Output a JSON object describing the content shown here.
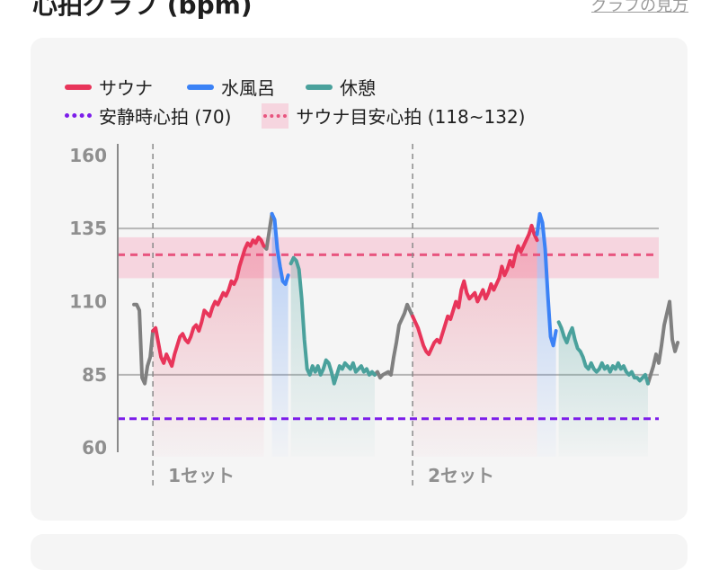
{
  "header": {
    "title": "心拍グラフ (bpm)",
    "help_link": "グラフの見方"
  },
  "legend": {
    "sauna": "サウナ",
    "cold_bath": "水風呂",
    "rest": "休憩",
    "resting_hr": "安静時心拍 (70)",
    "sauna_target": "サウナ目安心拍 (118~132)"
  },
  "colors": {
    "sauna": "#e8355a",
    "cold_bath": "#3b82f6",
    "rest": "#4aa19c",
    "transition": "#808080",
    "resting_hr": "#7c1dea",
    "sauna_target": "#e8557f",
    "sauna_target_band": "#f6d5df"
  },
  "chart_data": {
    "type": "line",
    "ylim": [
      57,
      163
    ],
    "yticks": [
      "160",
      "135",
      "110",
      "85",
      "60"
    ],
    "xlim": [
      0,
      100
    ],
    "grid_lines": [
      135,
      85
    ],
    "resting_hr": 70,
    "sauna_target_range": [
      118,
      132
    ],
    "sauna_target_line": 126,
    "set_boundaries": [
      {
        "x": 6.5,
        "label": "1セット"
      },
      {
        "x": 54.5,
        "label": "2セット"
      }
    ],
    "series": [
      {
        "name": "サウナ",
        "phase": "sauna",
        "fill": true,
        "points": [
          [
            6.5,
            100
          ],
          [
            7,
            101
          ],
          [
            7.5,
            96
          ],
          [
            8,
            91
          ],
          [
            8.5,
            89
          ],
          [
            9,
            92
          ],
          [
            9.5,
            90
          ],
          [
            10,
            88
          ],
          [
            10.5,
            92
          ],
          [
            11,
            95
          ],
          [
            11.5,
            98
          ],
          [
            12,
            99
          ],
          [
            12.5,
            97
          ],
          [
            13,
            96
          ],
          [
            13.5,
            98
          ],
          [
            14,
            101
          ],
          [
            14.5,
            102
          ],
          [
            15,
            100
          ],
          [
            15.5,
            103
          ],
          [
            16,
            107
          ],
          [
            16.5,
            106
          ],
          [
            17,
            105
          ],
          [
            17.5,
            108
          ],
          [
            18,
            110
          ],
          [
            18.5,
            109
          ],
          [
            19,
            111
          ],
          [
            19.5,
            113
          ],
          [
            20,
            112
          ],
          [
            20.5,
            114
          ],
          [
            21,
            117
          ],
          [
            21.5,
            116
          ],
          [
            22,
            118
          ],
          [
            22.5,
            122
          ],
          [
            23,
            125
          ],
          [
            23.5,
            128
          ],
          [
            24,
            130
          ],
          [
            24.5,
            129
          ],
          [
            25,
            131
          ],
          [
            25.5,
            130
          ],
          [
            26,
            132
          ],
          [
            26.5,
            131
          ],
          [
            27,
            129
          ]
        ]
      },
      {
        "name": "水風呂",
        "phase": "cold_bath",
        "fill": true,
        "points": [
          [
            28.5,
            140
          ],
          [
            29,
            138
          ],
          [
            29.5,
            128
          ],
          [
            30,
            122
          ],
          [
            30.5,
            117
          ],
          [
            31,
            116
          ],
          [
            31.5,
            119
          ]
        ]
      },
      {
        "name": "休憩",
        "phase": "rest",
        "fill": true,
        "points": [
          [
            32,
            123
          ],
          [
            32.5,
            125
          ],
          [
            33,
            124
          ],
          [
            33.5,
            121
          ],
          [
            34,
            111
          ],
          [
            34.5,
            97
          ],
          [
            35,
            87
          ],
          [
            35.5,
            85
          ],
          [
            36,
            88
          ],
          [
            36.5,
            86
          ],
          [
            37,
            88
          ],
          [
            37.5,
            85
          ],
          [
            38,
            87
          ],
          [
            38.5,
            90
          ],
          [
            39,
            89
          ],
          [
            39.5,
            86
          ],
          [
            40,
            82
          ],
          [
            40.5,
            85
          ],
          [
            41,
            88
          ],
          [
            41.5,
            87
          ],
          [
            42,
            89
          ],
          [
            42.5,
            88
          ],
          [
            43,
            87
          ],
          [
            43.5,
            89
          ],
          [
            44,
            86
          ],
          [
            44.5,
            87
          ],
          [
            45,
            88
          ],
          [
            45.5,
            86
          ],
          [
            46,
            87
          ],
          [
            46.5,
            85
          ],
          [
            47,
            86
          ],
          [
            47.5,
            85
          ]
        ]
      },
      {
        "name": "サウナ",
        "phase": "sauna",
        "fill": true,
        "points": [
          [
            54.5,
            105
          ],
          [
            55,
            103
          ],
          [
            55.5,
            101
          ],
          [
            56,
            98
          ],
          [
            56.5,
            95
          ],
          [
            57,
            93
          ],
          [
            57.5,
            92
          ],
          [
            58,
            94
          ],
          [
            58.5,
            96
          ],
          [
            59,
            97
          ],
          [
            59.5,
            96
          ],
          [
            60,
            99
          ],
          [
            60.5,
            102
          ],
          [
            61,
            105
          ],
          [
            61.5,
            104
          ],
          [
            62,
            107
          ],
          [
            62.5,
            110
          ],
          [
            63,
            108
          ],
          [
            63.5,
            114
          ],
          [
            64,
            117
          ],
          [
            64.5,
            113
          ],
          [
            65,
            111
          ],
          [
            65.5,
            112
          ],
          [
            66,
            113
          ],
          [
            66.5,
            110
          ],
          [
            67,
            112
          ],
          [
            67.5,
            114
          ],
          [
            68,
            111
          ],
          [
            68.5,
            113
          ],
          [
            69,
            116
          ],
          [
            69.5,
            114
          ],
          [
            70,
            116
          ],
          [
            70.5,
            118
          ],
          [
            71,
            122
          ],
          [
            71.5,
            119
          ],
          [
            72,
            121
          ],
          [
            72.5,
            124
          ],
          [
            73,
            122
          ],
          [
            73.5,
            126
          ],
          [
            74,
            129
          ],
          [
            74.5,
            127
          ],
          [
            75,
            129
          ],
          [
            75.5,
            131
          ],
          [
            76,
            133
          ],
          [
            76.5,
            136
          ],
          [
            77,
            133
          ],
          [
            77.5,
            131
          ]
        ]
      },
      {
        "name": "水風呂",
        "phase": "cold_bath",
        "fill": true,
        "points": [
          [
            77.5,
            133
          ],
          [
            78,
            140
          ],
          [
            78.5,
            137
          ],
          [
            79,
            128
          ],
          [
            79.5,
            112
          ],
          [
            80,
            98
          ],
          [
            80.5,
            95
          ],
          [
            81,
            100
          ]
        ]
      },
      {
        "name": "休憩",
        "phase": "rest",
        "fill": true,
        "points": [
          [
            81.5,
            103
          ],
          [
            82,
            101
          ],
          [
            82.5,
            98
          ],
          [
            83,
            96
          ],
          [
            83.5,
            99
          ],
          [
            84,
            101
          ],
          [
            84.5,
            97
          ],
          [
            85,
            94
          ],
          [
            85.5,
            93
          ],
          [
            86,
            91
          ],
          [
            86.5,
            88
          ],
          [
            87,
            87
          ],
          [
            87.5,
            89
          ],
          [
            88,
            87
          ],
          [
            88.5,
            86
          ],
          [
            89,
            87
          ],
          [
            89.5,
            89
          ],
          [
            90,
            87
          ],
          [
            90.5,
            88
          ],
          [
            91,
            86
          ],
          [
            91.5,
            88
          ],
          [
            92,
            87
          ],
          [
            92.5,
            89
          ],
          [
            93,
            87
          ],
          [
            93.5,
            88
          ],
          [
            94,
            86
          ],
          [
            94.5,
            85
          ],
          [
            95,
            86
          ],
          [
            95.5,
            84
          ],
          [
            96,
            84
          ],
          [
            96.5,
            83
          ],
          [
            97,
            84
          ],
          [
            97.5,
            85
          ],
          [
            98,
            82
          ]
        ]
      },
      {
        "phase": "transition",
        "fill": false,
        "points": [
          [
            3,
            109
          ],
          [
            3.5,
            109
          ],
          [
            4,
            107
          ],
          [
            4.5,
            84
          ],
          [
            5,
            82
          ],
          [
            5.5,
            88
          ],
          [
            6,
            91
          ],
          [
            6.5,
            100
          ]
        ]
      },
      {
        "phase": "transition",
        "fill": false,
        "points": [
          [
            27,
            129
          ],
          [
            27.5,
            128
          ],
          [
            28,
            134
          ],
          [
            28.5,
            140
          ]
        ]
      },
      {
        "phase": "transition",
        "fill": false,
        "points": [
          [
            47.5,
            85
          ],
          [
            48,
            86
          ],
          [
            48.5,
            84
          ],
          [
            49,
            85
          ],
          [
            50,
            86
          ],
          [
            50.5,
            85
          ],
          [
            51,
            91
          ],
          [
            51.5,
            96
          ],
          [
            52,
            102
          ],
          [
            53,
            106
          ],
          [
            53.5,
            109
          ],
          [
            54,
            107
          ],
          [
            54.5,
            105
          ]
        ]
      },
      {
        "phase": "transition",
        "fill": false,
        "points": [
          [
            98,
            82
          ],
          [
            98.5,
            85
          ],
          [
            99,
            88
          ],
          [
            99.5,
            92
          ],
          [
            100,
            89
          ],
          [
            100.5,
            95
          ],
          [
            101,
            102
          ],
          [
            101.5,
            106
          ],
          [
            102,
            110
          ],
          [
            102.5,
            97
          ],
          [
            103,
            93
          ],
          [
            103.5,
            96
          ]
        ]
      }
    ]
  }
}
